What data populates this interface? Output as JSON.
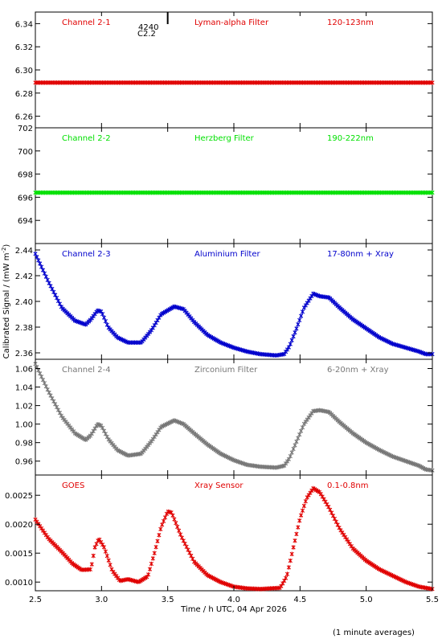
{
  "chart_data": {
    "type": "scatter",
    "x_label": "Time / h UTC, 04 Apr 2026",
    "y_label": "Calibrated Signal / (mW m",
    "y_label_sup": "-2",
    "y_label_end": ")",
    "x_range": [
      2.5,
      5.5
    ],
    "x_ticks": [
      "2.5",
      "3.0",
      "3.5",
      "4.0",
      "4.5",
      "5.0",
      "5.5"
    ],
    "annotation": {
      "line1": "4240",
      "line2": "C2.2",
      "x": 3.5
    },
    "panels": [
      {
        "channel": "Channel 2-1",
        "filter": "Lyman-alpha Filter",
        "band": "120-123nm",
        "color": "#e00000",
        "ylim": [
          6.25,
          6.35
        ],
        "y_ticks": [
          "6.26",
          "6.28",
          "6.30",
          "6.32",
          "6.34"
        ],
        "curve": [
          [
            2.5,
            6.289
          ],
          [
            5.5,
            6.289
          ]
        ]
      },
      {
        "channel": "Channel 2-2",
        "filter": "Herzberg Filter",
        "band": "190-222nm",
        "color": "#00e000",
        "ylim": [
          692,
          702
        ],
        "y_ticks": [
          "694",
          "696",
          "698",
          "700",
          "702"
        ],
        "curve": [
          [
            2.5,
            696.4
          ],
          [
            5.5,
            696.4
          ]
        ]
      },
      {
        "channel": "Channel 2-3",
        "filter": "Aluminium Filter",
        "band": "17-80nm + Xray",
        "color": "#0000cc",
        "ylim": [
          2.355,
          2.445
        ],
        "y_ticks": [
          "2.36",
          "2.38",
          "2.40",
          "2.42",
          "2.44"
        ],
        "curve": [
          [
            2.5,
            2.437
          ],
          [
            2.6,
            2.415
          ],
          [
            2.7,
            2.395
          ],
          [
            2.8,
            2.385
          ],
          [
            2.88,
            2.382
          ],
          [
            2.92,
            2.386
          ],
          [
            2.97,
            2.393
          ],
          [
            3.0,
            2.392
          ],
          [
            3.05,
            2.38
          ],
          [
            3.12,
            2.372
          ],
          [
            3.2,
            2.368
          ],
          [
            3.3,
            2.368
          ],
          [
            3.38,
            2.378
          ],
          [
            3.45,
            2.39
          ],
          [
            3.55,
            2.396
          ],
          [
            3.62,
            2.394
          ],
          [
            3.7,
            2.384
          ],
          [
            3.8,
            2.374
          ],
          [
            3.9,
            2.368
          ],
          [
            4.0,
            2.364
          ],
          [
            4.1,
            2.361
          ],
          [
            4.2,
            2.359
          ],
          [
            4.32,
            2.358
          ],
          [
            4.38,
            2.359
          ],
          [
            4.42,
            2.365
          ],
          [
            4.47,
            2.378
          ],
          [
            4.53,
            2.395
          ],
          [
            4.6,
            2.406
          ],
          [
            4.65,
            2.404
          ],
          [
            4.72,
            2.403
          ],
          [
            4.8,
            2.395
          ],
          [
            4.9,
            2.386
          ],
          [
            5.0,
            2.379
          ],
          [
            5.1,
            2.372
          ],
          [
            5.2,
            2.367
          ],
          [
            5.3,
            2.364
          ],
          [
            5.4,
            2.361
          ],
          [
            5.45,
            2.359
          ],
          [
            5.5,
            2.359
          ]
        ]
      },
      {
        "channel": "Channel 2-4",
        "filter": "Zirconium Filter",
        "band": "6-20nm + Xray",
        "color": "#777777",
        "ylim": [
          0.945,
          1.07
        ],
        "y_ticks": [
          "0.96",
          "0.98",
          "1.00",
          "1.02",
          "1.04",
          "1.06"
        ],
        "curve": [
          [
            2.5,
            1.065
          ],
          [
            2.6,
            1.035
          ],
          [
            2.7,
            1.008
          ],
          [
            2.8,
            0.99
          ],
          [
            2.88,
            0.983
          ],
          [
            2.92,
            0.988
          ],
          [
            2.97,
            1.0
          ],
          [
            3.0,
            0.998
          ],
          [
            3.05,
            0.984
          ],
          [
            3.12,
            0.972
          ],
          [
            3.2,
            0.966
          ],
          [
            3.3,
            0.968
          ],
          [
            3.38,
            0.982
          ],
          [
            3.45,
            0.997
          ],
          [
            3.55,
            1.004
          ],
          [
            3.62,
            1.0
          ],
          [
            3.7,
            0.99
          ],
          [
            3.8,
            0.978
          ],
          [
            3.9,
            0.968
          ],
          [
            4.0,
            0.961
          ],
          [
            4.1,
            0.956
          ],
          [
            4.2,
            0.954
          ],
          [
            4.32,
            0.953
          ],
          [
            4.38,
            0.955
          ],
          [
            4.42,
            0.963
          ],
          [
            4.47,
            0.98
          ],
          [
            4.53,
            1.0
          ],
          [
            4.6,
            1.014
          ],
          [
            4.65,
            1.015
          ],
          [
            4.72,
            1.013
          ],
          [
            4.8,
            1.002
          ],
          [
            4.9,
            0.99
          ],
          [
            5.0,
            0.98
          ],
          [
            5.1,
            0.972
          ],
          [
            5.2,
            0.965
          ],
          [
            5.3,
            0.96
          ],
          [
            5.4,
            0.955
          ],
          [
            5.45,
            0.951
          ],
          [
            5.5,
            0.95
          ]
        ]
      },
      {
        "channel": "GOES",
        "filter": "Xray Sensor",
        "band": "0.1-0.8nm",
        "color": "#e00000",
        "ylim": [
          0.00085,
          0.00285
        ],
        "y_ticks": [
          "0.0010",
          "0.0015",
          "0.0020",
          "0.0025"
        ],
        "curve": [
          [
            2.5,
            0.00208
          ],
          [
            2.6,
            0.00175
          ],
          [
            2.7,
            0.00152
          ],
          [
            2.78,
            0.00132
          ],
          [
            2.85,
            0.00121
          ],
          [
            2.92,
            0.00122
          ],
          [
            2.95,
            0.0016
          ],
          [
            2.98,
            0.00175
          ],
          [
            3.02,
            0.0016
          ],
          [
            3.08,
            0.0012
          ],
          [
            3.14,
            0.00102
          ],
          [
            3.2,
            0.00105
          ],
          [
            3.28,
            0.001
          ],
          [
            3.35,
            0.0011
          ],
          [
            3.4,
            0.0015
          ],
          [
            3.45,
            0.00195
          ],
          [
            3.5,
            0.00222
          ],
          [
            3.53,
            0.0022
          ],
          [
            3.6,
            0.0018
          ],
          [
            3.7,
            0.00135
          ],
          [
            3.8,
            0.00112
          ],
          [
            3.9,
            0.001
          ],
          [
            4.0,
            0.00092
          ],
          [
            4.1,
            0.00089
          ],
          [
            4.2,
            0.00088
          ],
          [
            4.35,
            0.0009
          ],
          [
            4.4,
            0.0011
          ],
          [
            4.45,
            0.0016
          ],
          [
            4.5,
            0.0021
          ],
          [
            4.55,
            0.00245
          ],
          [
            4.6,
            0.00262
          ],
          [
            4.65,
            0.00255
          ],
          [
            4.72,
            0.00228
          ],
          [
            4.8,
            0.00192
          ],
          [
            4.9,
            0.00158
          ],
          [
            5.0,
            0.00137
          ],
          [
            5.1,
            0.00122
          ],
          [
            5.2,
            0.00111
          ],
          [
            5.3,
            0.001
          ],
          [
            5.4,
            0.00092
          ],
          [
            5.5,
            0.00088
          ]
        ]
      }
    ]
  },
  "footer": "(1 minute averages)"
}
